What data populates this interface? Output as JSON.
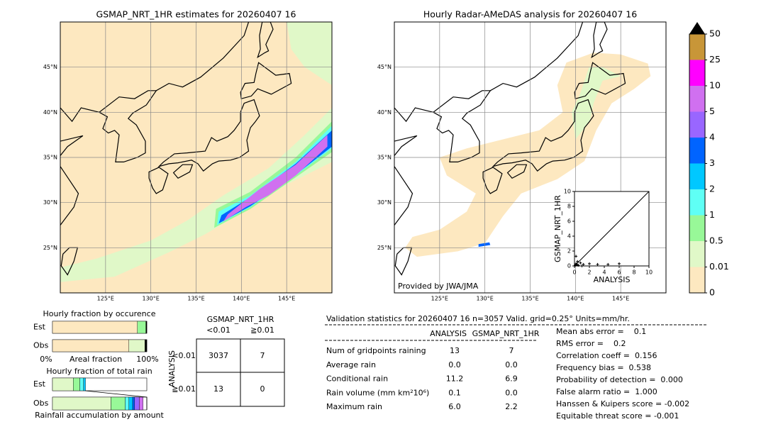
{
  "left_map": {
    "title": "GSMAP_NRT_1HR estimates for 20260407 16",
    "xlim": [
      120,
      150
    ],
    "ylim": [
      20,
      50
    ],
    "lat_ticks": [
      {
        "value": 45,
        "label": "45°N"
      },
      {
        "value": 40,
        "label": "40°N"
      },
      {
        "value": 35,
        "label": "35°N"
      },
      {
        "value": 30,
        "label": "30°N"
      },
      {
        "value": 25,
        "label": "25°N"
      }
    ],
    "lon_ticks": [
      {
        "value": 125,
        "label": "125°E"
      },
      {
        "value": 130,
        "label": "130°E"
      },
      {
        "value": 135,
        "label": "135°E"
      },
      {
        "value": 140,
        "label": "140°E"
      },
      {
        "value": 145,
        "label": "145°E"
      }
    ]
  },
  "right_map": {
    "title": "Hourly Radar-AMeDAS analysis for 20260407 16",
    "xlim": [
      120,
      150
    ],
    "ylim": [
      20,
      50
    ],
    "lat_ticks": [
      {
        "value": 45,
        "label": "45°N"
      },
      {
        "value": 40,
        "label": "40°N"
      },
      {
        "value": 35,
        "label": "35°N"
      },
      {
        "value": 30,
        "label": "30°N"
      },
      {
        "value": 25,
        "label": "25°N"
      }
    ],
    "lon_ticks": [
      {
        "value": 125,
        "label": "125°E"
      },
      {
        "value": 130,
        "label": "130°E"
      },
      {
        "value": 135,
        "label": "135°E"
      },
      {
        "value": 140,
        "label": "140°E"
      },
      {
        "value": 145,
        "label": "145°E"
      }
    ],
    "credit": "Provided by JWA/JMA"
  },
  "scatter": {
    "type": "scatter",
    "xlabel": "ANALYSIS",
    "ylabel": "GSMAP_NRT_1HR",
    "xlim": [
      0,
      10
    ],
    "ylim": [
      0,
      10
    ],
    "xticks": [
      0,
      2,
      4,
      6,
      8,
      10
    ],
    "yticks": [
      0,
      2,
      4,
      6,
      8,
      10
    ],
    "x": [
      0.1,
      0.2,
      0.3,
      0.5,
      0.8,
      1.2,
      2.0,
      3.1,
      4.5,
      6.0,
      0.4,
      0.2,
      1.0
    ],
    "y": [
      0.1,
      0.3,
      0.2,
      0.1,
      0.4,
      0.2,
      0.3,
      0.2,
      0.2,
      0.3,
      0.6,
      1.3,
      0.0
    ]
  },
  "colorbar": {
    "levels": [
      0,
      0.01,
      0.5,
      1,
      2,
      3,
      4,
      5,
      10,
      25,
      50
    ],
    "colors": [
      "#fde8c0",
      "#e0f8c8",
      "#98f898",
      "#5ffff5",
      "#00c8ff",
      "#0064ff",
      "#9966ff",
      "#d070f0",
      "#ff00ff",
      "#c89638"
    ],
    "extend_color": "#000000"
  },
  "occurrence": {
    "title": "Hourly fraction by occurence",
    "rows": [
      "Est",
      "Obs"
    ],
    "xlabels": [
      "0%",
      "Areal fraction",
      "100%"
    ],
    "segments": [
      [
        {
          "color": "#fde8c0",
          "value": 0.9
        },
        {
          "color": "#98f898",
          "value": 0.09
        },
        {
          "color": "#000000",
          "value": 0.01
        }
      ],
      [
        {
          "color": "#fde8c0",
          "value": 0.81
        },
        {
          "color": "#e0f8c8",
          "value": 0.17
        },
        {
          "color": "#000000",
          "value": 0.02
        }
      ]
    ]
  },
  "total": {
    "title": "Hourly fraction of total rain",
    "rows": [
      "Est",
      "Obs"
    ],
    "xlabel": "Rainfall accumulation by amount",
    "segments": [
      [
        {
          "color": "#e0f8c8",
          "value": 0.22
        },
        {
          "color": "#98f898",
          "value": 0.07
        },
        {
          "color": "#5ffff5",
          "value": 0.04
        },
        {
          "color": "#00c8ff",
          "value": 0.02
        }
      ],
      [
        {
          "color": "#e0f8c8",
          "value": 0.62
        },
        {
          "color": "#98f898",
          "value": 0.15
        },
        {
          "color": "#5ffff5",
          "value": 0.04
        },
        {
          "color": "#00c8ff",
          "value": 0.04
        },
        {
          "color": "#0064ff",
          "value": 0.02
        },
        {
          "color": "#9966ff",
          "value": 0.05
        },
        {
          "color": "#d070f0",
          "value": 0.04
        }
      ]
    ]
  },
  "contingency": {
    "title": "GSMAP_NRT_1HR",
    "col_headers": [
      "<0.01",
      "≧0.01"
    ],
    "row_label": "ANALYSIS",
    "row_headers": [
      "<0.01",
      "≧0.01"
    ],
    "cells": [
      [
        3037,
        7
      ],
      [
        13,
        0
      ]
    ]
  },
  "validation": {
    "header": "Validation statistics for 20260407 16  n=3057 Valid. grid=0.25° Units=mm/hr.",
    "columns": [
      "ANALYSIS",
      "GSMAP_NRT_1HR"
    ],
    "rows": [
      [
        "Num of gridpoints raining",
        "13",
        "7"
      ],
      [
        "Average rain",
        "0.0",
        "0.0"
      ],
      [
        "Conditional rain",
        "11.2",
        "6.9"
      ],
      [
        "Rain volume (mm km²10⁶)",
        "0.1",
        "0.0"
      ],
      [
        "Maximum rain",
        "6.0",
        "2.2"
      ]
    ],
    "scores": [
      "Mean abs error =    0.1",
      "RMS error =    0.2",
      "Correlation coeff =  0.156",
      "Frequency bias =  0.538",
      "Probability of detection =  0.000",
      "False alarm ratio =  1.000",
      "Hanssen & Kuipers score = -0.002",
      "Equitable threat score = -0.001"
    ]
  }
}
